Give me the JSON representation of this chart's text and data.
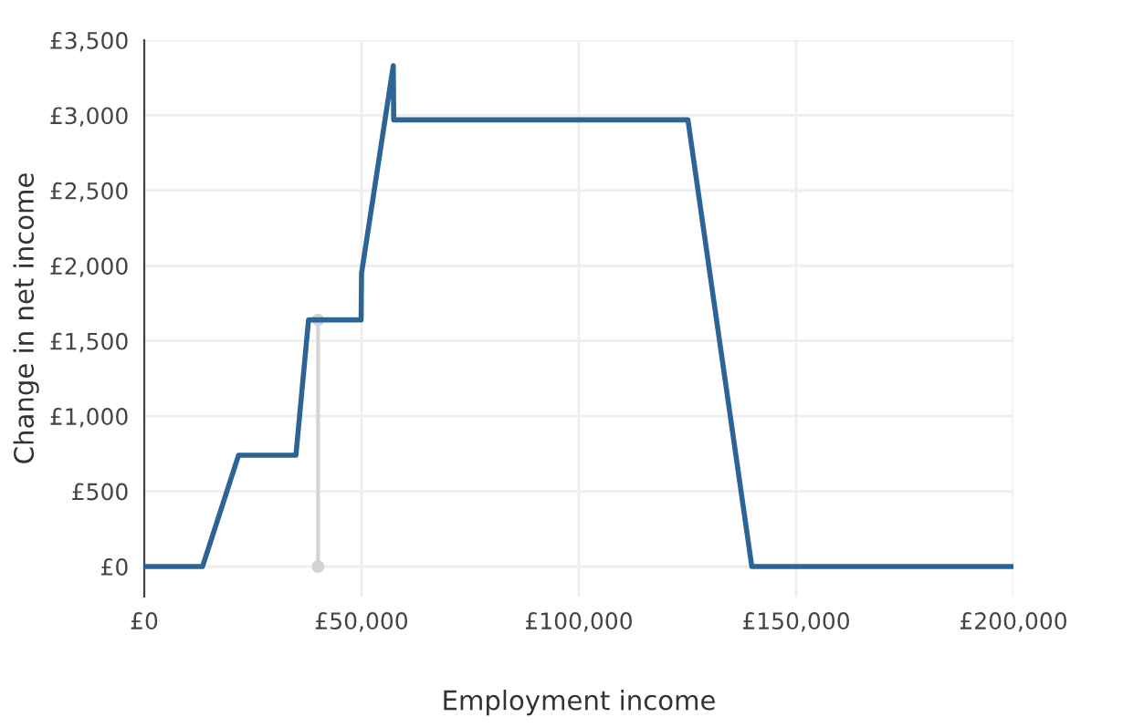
{
  "chart_data": {
    "type": "line",
    "xlabel": "Employment income",
    "ylabel": "Change in net income",
    "series": [
      {
        "color": "#2c6496",
        "x": [
          0,
          13400,
          21700,
          34900,
          37800,
          49900,
          50000,
          57300,
          57400,
          125100,
          139800,
          200000
        ],
        "values": [
          0,
          0,
          740,
          740,
          1640,
          1640,
          1950,
          3330,
          2970,
          2970,
          0,
          0
        ]
      },
      {
        "color": "#d3d3d3",
        "x": [
          40000,
          40000
        ],
        "values": [
          0,
          1640
        ],
        "marker": "circle"
      }
    ],
    "xlim": [
      0,
      200000
    ],
    "ylim": [
      -200,
      3500
    ],
    "xticks": [
      {
        "value": 0,
        "label": "£0"
      },
      {
        "value": 50000,
        "label": "£50,000"
      },
      {
        "value": 100000,
        "label": "£100,000"
      },
      {
        "value": 150000,
        "label": "£150,000"
      },
      {
        "value": 200000,
        "label": "£200,000"
      }
    ],
    "yticks": [
      {
        "value": 0,
        "label": "£0"
      },
      {
        "value": 500,
        "label": "£500"
      },
      {
        "value": 1000,
        "label": "£1,000"
      },
      {
        "value": 1500,
        "label": "£1,500"
      },
      {
        "value": 2000,
        "label": "£2,000"
      },
      {
        "value": 2500,
        "label": "£2,500"
      },
      {
        "value": 3000,
        "label": "£3,000"
      },
      {
        "value": 3500,
        "label": "£3,500"
      }
    ],
    "grid": true,
    "legend": false
  }
}
